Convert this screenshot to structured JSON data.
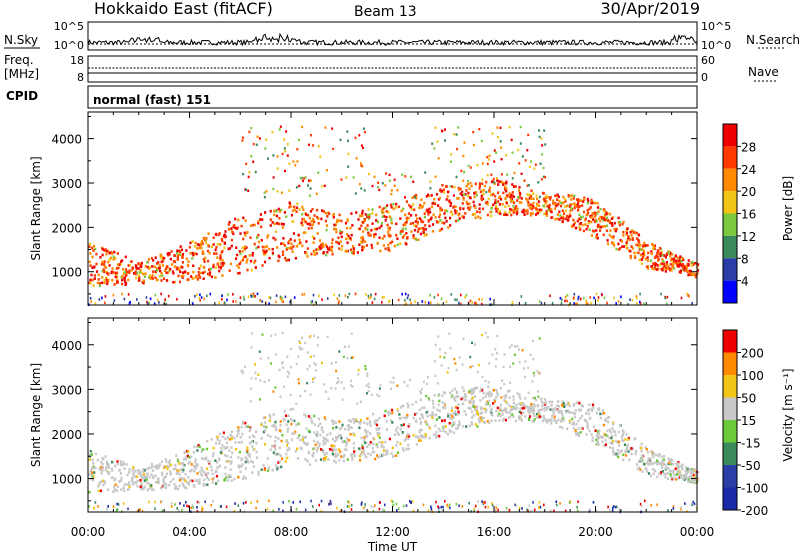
{
  "header": {
    "station": "Hokkaido East (fitACF)",
    "beam": "Beam 13",
    "date": "30/Apr/2019"
  },
  "side_labels": {
    "nsky": "N.Sky",
    "freq": "Freq.",
    "mhz": "[MHz]",
    "cpid": "CPID",
    "nsearch": "N.Search",
    "nave": "Nave"
  },
  "mode_label": "normal (fast) 151",
  "time_axis": {
    "xlabel": "Time UT",
    "ticks": [
      "00:00",
      "04:00",
      "08:00",
      "12:00",
      "16:00",
      "20:00",
      "00:00"
    ]
  },
  "chart_data": [
    {
      "type": "line",
      "panel": "noise",
      "left_ticks": [
        "10^5",
        "10^0"
      ],
      "right_ticks": [
        "10^5",
        "10^0"
      ]
    },
    {
      "type": "line",
      "panel": "frequency",
      "left_ticks": [
        "18",
        "8"
      ],
      "right_ticks": [
        "60",
        "0"
      ]
    },
    {
      "type": "heatmap",
      "panel": "power",
      "ylabel": "Slant Range [km]",
      "yticks": [
        "4000",
        "3000",
        "2000",
        "1000"
      ],
      "ylim": [
        250,
        4600
      ],
      "colorbar_label": "Power [dB]",
      "colorbar_ticks": [
        "28",
        "24",
        "20",
        "16",
        "12",
        "8",
        "4"
      ],
      "colors": [
        "#0000ff",
        "#2b3ea8",
        "#3a8a5c",
        "#7cc940",
        "#f2c416",
        "#ff8a00",
        "#ff3a00",
        "#ee0000"
      ],
      "echo_band_km": [
        {
          "t": 0,
          "min": 700,
          "max": 1700
        },
        {
          "t": 2,
          "min": 750,
          "max": 1250
        },
        {
          "t": 4,
          "min": 800,
          "max": 1700
        },
        {
          "t": 6,
          "min": 1000,
          "max": 2300
        },
        {
          "t": 8,
          "min": 1300,
          "max": 2600
        },
        {
          "t": 10,
          "min": 1400,
          "max": 2300
        },
        {
          "t": 12,
          "min": 1500,
          "max": 2600
        },
        {
          "t": 14,
          "min": 2000,
          "max": 3000
        },
        {
          "t": 16,
          "min": 2300,
          "max": 3100
        },
        {
          "t": 18,
          "min": 2300,
          "max": 2800
        },
        {
          "t": 20,
          "min": 1800,
          "max": 2700
        },
        {
          "t": 22,
          "min": 1100,
          "max": 1700
        },
        {
          "t": 24,
          "min": 900,
          "max": 1200
        }
      ]
    },
    {
      "type": "heatmap",
      "panel": "velocity",
      "ylabel": "Slant Range [km]",
      "yticks": [
        "4000",
        "3000",
        "2000",
        "1000"
      ],
      "ylim": [
        250,
        4600
      ],
      "colorbar_label": "Velocity [m s⁻¹]",
      "colorbar_ticks": [
        "200",
        "100",
        "50",
        "15",
        "-15",
        "-50",
        "-100",
        "-200"
      ],
      "colors": [
        "#1a2aa8",
        "#2b3ea8",
        "#3a8a5c",
        "#6cc93a",
        "#c8c8c8",
        "#f2c416",
        "#ff8a00",
        "#ee0000"
      ]
    }
  ]
}
